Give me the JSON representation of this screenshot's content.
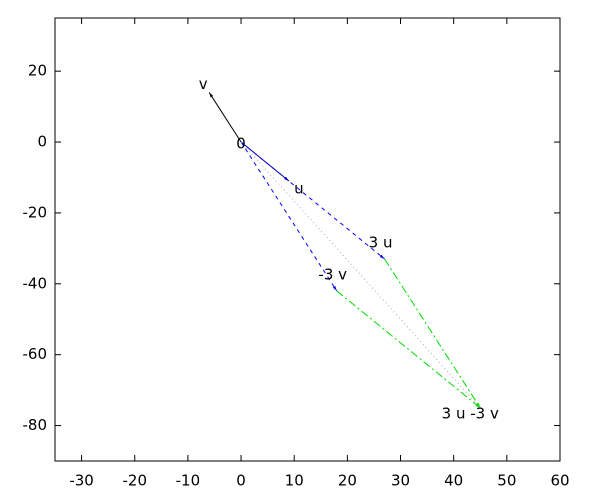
{
  "chart_data": {
    "type": "vector",
    "xlim": [
      -35,
      60
    ],
    "ylim": [
      -90,
      35
    ],
    "xticks": [
      -30,
      -20,
      -10,
      0,
      10,
      20,
      30,
      40,
      50,
      60
    ],
    "yticks": [
      -80,
      -60,
      -40,
      -20,
      0,
      20
    ],
    "arrows": [
      {
        "x0": 0,
        "y0": 0,
        "x1": 9,
        "y1": -11,
        "color": "#000080",
        "dash": "none",
        "head": true
      },
      {
        "x0": 0,
        "y0": 0,
        "x1": -6,
        "y1": 14,
        "color": "#000000",
        "dash": "none",
        "head": true
      },
      {
        "x0": 0,
        "y0": 0,
        "x1": 27,
        "y1": -33,
        "color": "#0000ff",
        "dash": "4 4",
        "head": true
      },
      {
        "x0": 0,
        "y0": 0,
        "x1": 18,
        "y1": -42,
        "color": "#0000ff",
        "dash": "4 4",
        "head": true
      },
      {
        "x0": 27,
        "y0": -33,
        "x1": 45,
        "y1": -75,
        "color": "#00dd00",
        "dash": "8 3 2 3",
        "head": true
      },
      {
        "x0": 18,
        "y0": -42,
        "x1": 45,
        "y1": -75,
        "color": "#00dd00",
        "dash": "8 3 2 3",
        "head": true
      },
      {
        "x0": 0,
        "y0": 0,
        "x1": 45,
        "y1": -75,
        "color": "#aaaaaa",
        "dash": "1 3",
        "head": false
      }
    ],
    "point_labels": [
      {
        "text": "0",
        "x": 0,
        "y": 0
      },
      {
        "text": "u",
        "x": 9,
        "y": -11
      },
      {
        "text": "v",
        "x": -6,
        "y": 14
      },
      {
        "text": "3 u",
        "x": 27,
        "y": -33
      },
      {
        "text": "-3 v",
        "x": 18,
        "y": -42
      },
      {
        "text": "3 u -3 v",
        "x": 45,
        "y": -75
      }
    ]
  }
}
